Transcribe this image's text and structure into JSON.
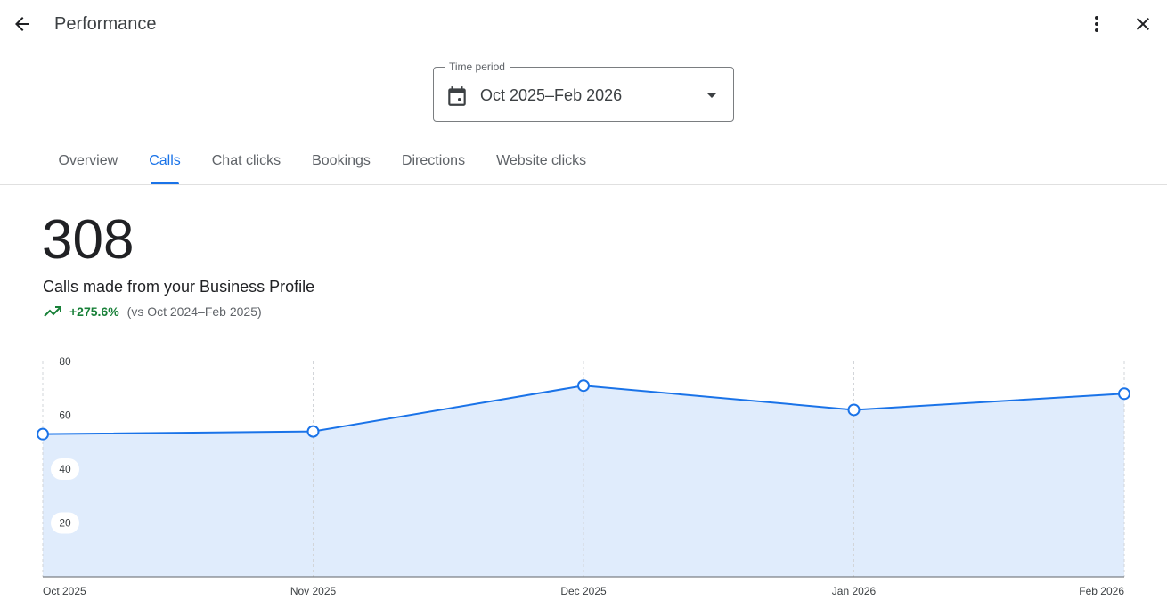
{
  "header": {
    "title": "Performance",
    "back_icon": "arrow-back-icon",
    "more_icon": "more-vert-icon",
    "close_icon": "close-icon"
  },
  "time_period": {
    "label": "Time period",
    "value": "Oct 2025–Feb 2026",
    "icon": "calendar-icon"
  },
  "tabs": [
    {
      "label": "Overview",
      "active": false
    },
    {
      "label": "Calls",
      "active": true
    },
    {
      "label": "Chat clicks",
      "active": false
    },
    {
      "label": "Bookings",
      "active": false
    },
    {
      "label": "Directions",
      "active": false
    },
    {
      "label": "Website clicks",
      "active": false
    }
  ],
  "summary": {
    "total": "308",
    "description": "Calls made from your Business Profile",
    "change": "+275.6%",
    "comparison": "(vs Oct 2024–Feb 2025)"
  },
  "colors": {
    "accent": "#1a73e8",
    "positive": "#188038",
    "area_fill": "#e0ecfc"
  },
  "chart_data": {
    "type": "area",
    "categories": [
      "Oct 2025",
      "Nov 2025",
      "Dec 2025",
      "Jan 2026",
      "Feb 2026"
    ],
    "series": [
      {
        "values": [
          53,
          54,
          71,
          62,
          68
        ]
      }
    ],
    "yticks": [
      20,
      40,
      60,
      80
    ],
    "ylim": [
      0,
      80
    ],
    "grid": "vertical dashed"
  }
}
